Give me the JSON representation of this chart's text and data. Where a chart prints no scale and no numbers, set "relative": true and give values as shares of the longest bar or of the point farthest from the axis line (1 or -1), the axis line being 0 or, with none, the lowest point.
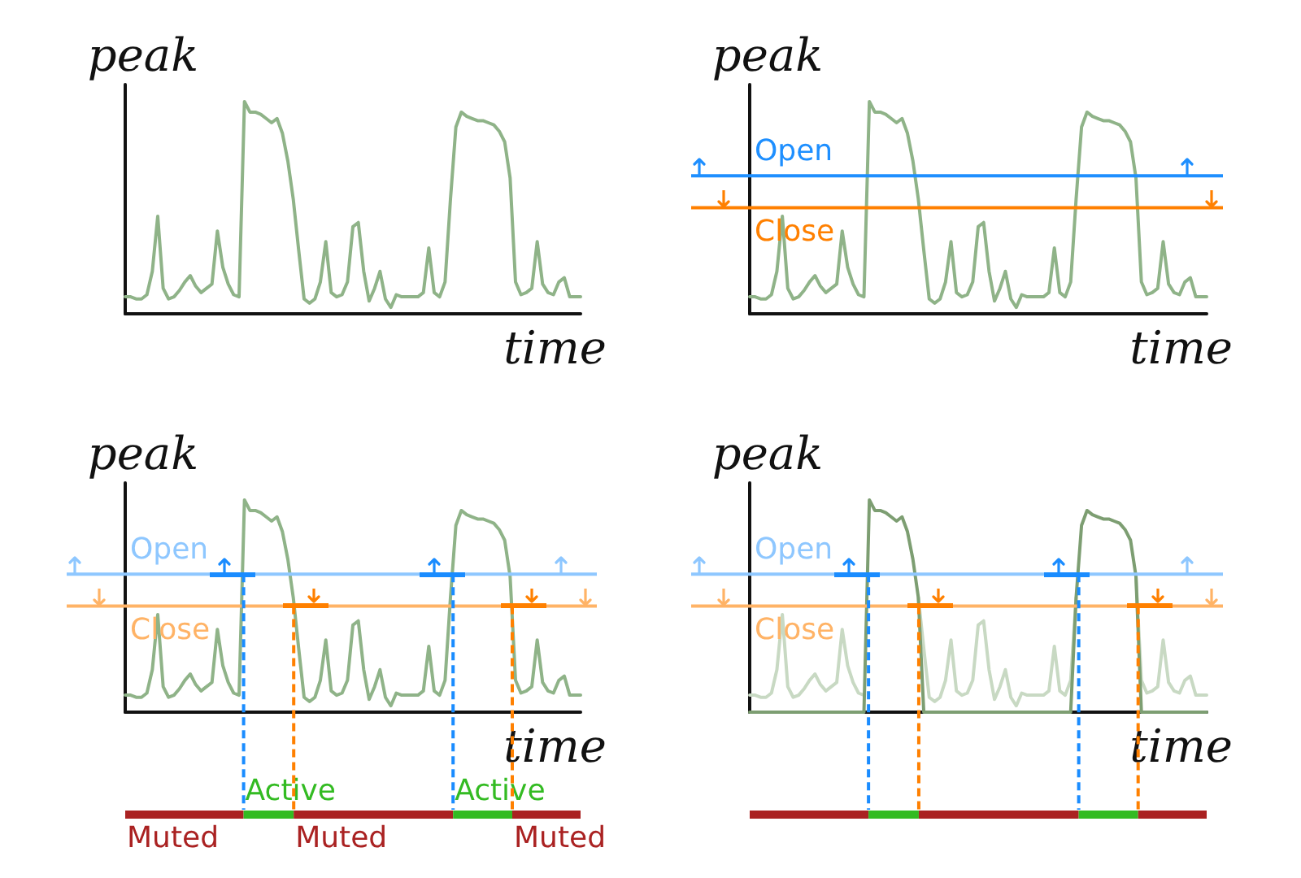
{
  "chart_data": [
    {
      "type": "line",
      "relative": true,
      "xlabel": "time",
      "ylabel": "peak",
      "categories": [
        null,
        null,
        null,
        null,
        null,
        null,
        null,
        null,
        null,
        null,
        null,
        null,
        null,
        null,
        null,
        null,
        null,
        null,
        null,
        null,
        null,
        null,
        null,
        null,
        null,
        null,
        null,
        null,
        null,
        null,
        null,
        null,
        null,
        null,
        null,
        null,
        null,
        null,
        null,
        null,
        null,
        null,
        null,
        null,
        null,
        null,
        null,
        null,
        null,
        null,
        null,
        null,
        null,
        null,
        null,
        null,
        null,
        null,
        null,
        null,
        null,
        null,
        null,
        null,
        null,
        null,
        null,
        null,
        null,
        null,
        null,
        null,
        null,
        null,
        null,
        null,
        null,
        null,
        null,
        null,
        null,
        null,
        null,
        null,
        null
      ],
      "series": [
        {
          "color": "#8fb388",
          "values": [
            0.08,
            0.08,
            0.07,
            0.07,
            0.09,
            0.2,
            0.46,
            0.12,
            0.07,
            0.08,
            0.11,
            0.15,
            0.18,
            0.13,
            0.1,
            0.12,
            0.14,
            0.39,
            0.22,
            0.14,
            0.09,
            0.08,
            1.0,
            0.95,
            0.95,
            0.94,
            0.92,
            0.9,
            0.92,
            0.85,
            0.72,
            0.54,
            0.3,
            0.07,
            0.05,
            0.07,
            0.15,
            0.34,
            0.1,
            0.08,
            0.09,
            0.15,
            0.41,
            0.43,
            0.2,
            0.06,
            0.12,
            0.2,
            0.07,
            0.03,
            0.09,
            0.08,
            0.08,
            0.08,
            0.08,
            0.1,
            0.31,
            0.1,
            0.08,
            0.15,
            0.54,
            0.88,
            0.95,
            0.93,
            0.92,
            0.91,
            0.91,
            0.9,
            0.89,
            0.86,
            0.81,
            0.64,
            0.15,
            0.09,
            0.1,
            0.12,
            0.34,
            0.14,
            0.1,
            0.09,
            0.15,
            0.17,
            0.08,
            0.08,
            0.08
          ]
        }
      ]
    },
    {
      "type": "line",
      "relative": true,
      "xlabel": "time",
      "ylabel": "peak",
      "categories": [
        null,
        null,
        null,
        null,
        null,
        null,
        null,
        null,
        null,
        null,
        null,
        null,
        null,
        null,
        null,
        null,
        null,
        null,
        null,
        null,
        null,
        null,
        null,
        null,
        null,
        null,
        null,
        null,
        null,
        null,
        null,
        null,
        null,
        null,
        null,
        null,
        null,
        null,
        null,
        null,
        null,
        null,
        null,
        null,
        null,
        null,
        null,
        null,
        null,
        null,
        null,
        null,
        null,
        null,
        null,
        null,
        null,
        null,
        null,
        null,
        null,
        null,
        null,
        null,
        null,
        null,
        null,
        null,
        null,
        null,
        null,
        null,
        null,
        null,
        null,
        null,
        null,
        null,
        null,
        null,
        null,
        null,
        null,
        null,
        null
      ],
      "series": [
        {
          "color": "#8fb388",
          "values": [
            0.08,
            0.08,
            0.07,
            0.07,
            0.09,
            0.2,
            0.46,
            0.12,
            0.07,
            0.08,
            0.11,
            0.15,
            0.18,
            0.13,
            0.1,
            0.12,
            0.14,
            0.39,
            0.22,
            0.14,
            0.09,
            0.08,
            1.0,
            0.95,
            0.95,
            0.94,
            0.92,
            0.9,
            0.92,
            0.85,
            0.72,
            0.54,
            0.3,
            0.07,
            0.05,
            0.07,
            0.15,
            0.34,
            0.1,
            0.08,
            0.09,
            0.15,
            0.41,
            0.43,
            0.2,
            0.06,
            0.12,
            0.2,
            0.07,
            0.03,
            0.09,
            0.08,
            0.08,
            0.08,
            0.08,
            0.1,
            0.31,
            0.1,
            0.08,
            0.15,
            0.54,
            0.88,
            0.95,
            0.93,
            0.92,
            0.91,
            0.91,
            0.9,
            0.89,
            0.86,
            0.81,
            0.64,
            0.15,
            0.09,
            0.1,
            0.12,
            0.34,
            0.14,
            0.1,
            0.09,
            0.15,
            0.17,
            0.08,
            0.08,
            0.08
          ]
        }
      ],
      "ref_lines": [
        {
          "axis": "y",
          "value": 0.65,
          "label": "Open",
          "color": "#1e8fff"
        },
        {
          "axis": "y",
          "value": 0.5,
          "label": "Close",
          "color": "#ff8000"
        }
      ]
    },
    {
      "type": "line",
      "relative": true,
      "xlabel": "time",
      "ylabel": "peak",
      "categories": [
        null,
        null,
        null,
        null,
        null,
        null,
        null,
        null,
        null,
        null,
        null,
        null,
        null,
        null,
        null,
        null,
        null,
        null,
        null,
        null,
        null,
        null,
        null,
        null,
        null,
        null,
        null,
        null,
        null,
        null,
        null,
        null,
        null,
        null,
        null,
        null,
        null,
        null,
        null,
        null,
        null,
        null,
        null,
        null,
        null,
        null,
        null,
        null,
        null,
        null,
        null,
        null,
        null,
        null,
        null,
        null,
        null,
        null,
        null,
        null,
        null,
        null,
        null,
        null,
        null,
        null,
        null,
        null,
        null,
        null,
        null,
        null,
        null,
        null,
        null,
        null,
        null,
        null,
        null,
        null,
        null,
        null,
        null,
        null,
        null
      ],
      "series": [
        {
          "color": "#8fb388",
          "values": [
            0.08,
            0.08,
            0.07,
            0.07,
            0.09,
            0.2,
            0.46,
            0.12,
            0.07,
            0.08,
            0.11,
            0.15,
            0.18,
            0.13,
            0.1,
            0.12,
            0.14,
            0.39,
            0.22,
            0.14,
            0.09,
            0.08,
            1.0,
            0.95,
            0.95,
            0.94,
            0.92,
            0.9,
            0.92,
            0.85,
            0.72,
            0.54,
            0.3,
            0.07,
            0.05,
            0.07,
            0.15,
            0.34,
            0.1,
            0.08,
            0.09,
            0.15,
            0.41,
            0.43,
            0.2,
            0.06,
            0.12,
            0.2,
            0.07,
            0.03,
            0.09,
            0.08,
            0.08,
            0.08,
            0.08,
            0.1,
            0.31,
            0.1,
            0.08,
            0.15,
            0.54,
            0.88,
            0.95,
            0.93,
            0.92,
            0.91,
            0.91,
            0.9,
            0.89,
            0.86,
            0.81,
            0.64,
            0.15,
            0.09,
            0.1,
            0.12,
            0.34,
            0.14,
            0.1,
            0.09,
            0.15,
            0.17,
            0.08,
            0.08,
            0.08
          ]
        }
      ],
      "ref_lines": [
        {
          "axis": "y",
          "value": 0.65,
          "label": "Open",
          "color": "#8ec7ff"
        },
        {
          "axis": "y",
          "value": 0.5,
          "label": "Close",
          "color": "#ffb366"
        }
      ]
    },
    {
      "type": "bar",
      "orientation": "horizontal",
      "stacked": true,
      "relative": true,
      "categories": [
        null
      ],
      "series": [
        {
          "name": "Muted",
          "color": "#aa2222",
          "values": [
            0.26
          ]
        },
        {
          "name": "Active",
          "color": "#33bb22",
          "values": [
            0.11
          ]
        },
        {
          "name": "Muted",
          "color": "#aa2222",
          "values": [
            0.35
          ]
        },
        {
          "name": "Active",
          "color": "#33bb22",
          "values": [
            0.13
          ]
        },
        {
          "name": "Muted",
          "color": "#aa2222",
          "values": [
            0.15
          ]
        }
      ]
    },
    {
      "type": "line",
      "relative": true,
      "xlabel": "time",
      "ylabel": "peak",
      "categories": [
        null,
        null,
        null,
        null,
        null,
        null,
        null,
        null,
        null,
        null,
        null,
        null,
        null,
        null,
        null,
        null,
        null,
        null,
        null,
        null,
        null,
        null,
        null,
        null,
        null,
        null,
        null,
        null,
        null,
        null,
        null,
        null,
        null,
        null,
        null,
        null,
        null,
        null,
        null,
        null,
        null,
        null,
        null,
        null,
        null,
        null,
        null,
        null,
        null,
        null,
        null,
        null,
        null,
        null,
        null,
        null,
        null,
        null,
        null,
        null,
        null,
        null,
        null,
        null,
        null,
        null,
        null,
        null,
        null,
        null,
        null,
        null,
        null,
        null,
        null,
        null,
        null,
        null,
        null,
        null,
        null,
        null,
        null,
        null,
        null
      ],
      "series": [
        {
          "color": "#c8d9c3",
          "values": [
            0.08,
            0.08,
            0.07,
            0.07,
            0.09,
            0.2,
            0.46,
            0.12,
            0.07,
            0.08,
            0.11,
            0.15,
            0.18,
            0.13,
            0.1,
            0.12,
            0.14,
            0.39,
            0.22,
            0.14,
            0.09,
            0.08,
            null,
            null,
            null,
            null,
            null,
            null,
            null,
            null,
            null,
            0.54,
            0.3,
            0.07,
            0.05,
            0.07,
            0.15,
            0.34,
            0.1,
            0.08,
            0.09,
            0.15,
            0.41,
            0.43,
            0.2,
            0.06,
            0.12,
            0.2,
            0.07,
            0.03,
            0.09,
            0.08,
            0.08,
            0.08,
            0.08,
            0.1,
            0.31,
            0.1,
            0.08,
            0.15,
            0.54,
            null,
            null,
            null,
            null,
            null,
            null,
            null,
            null,
            null,
            null,
            0.64,
            0.15,
            0.09,
            0.1,
            0.12,
            0.34,
            0.14,
            0.1,
            0.09,
            0.15,
            0.17,
            0.08,
            0.08,
            0.08
          ]
        },
        {
          "color": "#7d9e72",
          "values": [
            0,
            0,
            0,
            0,
            0,
            0,
            0,
            0,
            0,
            0,
            0,
            0,
            0,
            0,
            0,
            0,
            0,
            0,
            0,
            0,
            0,
            0,
            1.0,
            0.95,
            0.95,
            0.94,
            0.92,
            0.9,
            0.92,
            0.85,
            0.72,
            0.54,
            0,
            0,
            0,
            0,
            0,
            0,
            0,
            0,
            0,
            0,
            0,
            0,
            0,
            0,
            0,
            0,
            0,
            0,
            0,
            0,
            0,
            0,
            0,
            0,
            0,
            0,
            0,
            0,
            0.54,
            0.88,
            0.95,
            0.93,
            0.92,
            0.91,
            0.91,
            0.9,
            0.89,
            0.86,
            0.81,
            0.64,
            0,
            0,
            0,
            0,
            0,
            0,
            0,
            0,
            0,
            0,
            0,
            0,
            0
          ]
        }
      ],
      "ref_lines": [
        {
          "axis": "y",
          "value": 0.65,
          "label": "Open",
          "color": "#8ec7ff"
        },
        {
          "axis": "y",
          "value": 0.5,
          "label": "Close",
          "color": "#ffb366"
        }
      ]
    },
    {
      "type": "bar",
      "orientation": "horizontal",
      "stacked": true,
      "relative": true,
      "categories": [
        null
      ],
      "series": [
        {
          "color": "#aa2222",
          "values": [
            0.26
          ]
        },
        {
          "color": "#33bb22",
          "values": [
            0.11
          ]
        },
        {
          "color": "#aa2222",
          "values": [
            0.35
          ]
        },
        {
          "color": "#33bb22",
          "values": [
            0.13
          ]
        },
        {
          "color": "#aa2222",
          "values": [
            0.15
          ]
        }
      ]
    }
  ]
}
